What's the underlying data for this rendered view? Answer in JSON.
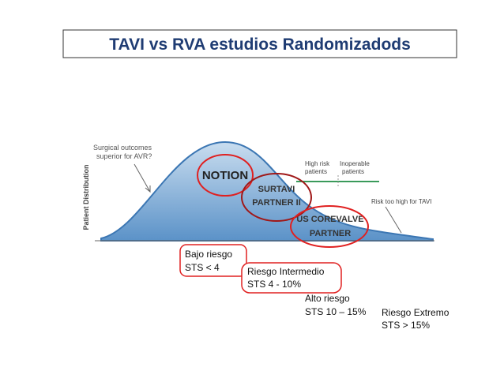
{
  "title": "TAVI vs RVA  estudios Randomizadods",
  "diagram": {
    "y_axis_label": "Patient Distribution",
    "surgical_note": [
      "Surgical outcomes",
      "superior for AVR?"
    ],
    "trials": [
      "NOTION",
      "SURTAVI",
      "PARTNER II",
      "US COREVALVE",
      "PARTNER"
    ],
    "high_risk": [
      "High risk",
      "patients"
    ],
    "inoperable": [
      "Inoperable",
      "patients"
    ],
    "too_high": "Risk too high for TAVI"
  },
  "risk_groups": [
    {
      "name": "Bajo riesgo",
      "sts": "STS < 4"
    },
    {
      "name": "Riesgo Intermedio",
      "sts": "STS  4 - 10%"
    },
    {
      "name": "Alto riesgo",
      "sts": "STS 10 – 15%"
    },
    {
      "name": "Riesgo Extremo",
      "sts": "STS > 15%"
    }
  ]
}
